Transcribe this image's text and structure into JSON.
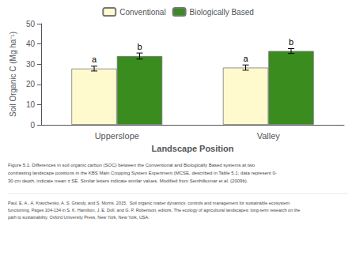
{
  "chart_data": {
    "type": "bar",
    "categories": [
      "Upperslope",
      "Valley"
    ],
    "series": [
      {
        "name": "Conventional",
        "color": "#FFFACD",
        "values": [
          27.8,
          28.3
        ],
        "errors": [
          1.2,
          1.3
        ],
        "annotations": [
          "a",
          "a"
        ]
      },
      {
        "name": "Biologically Based",
        "color": "#3a8c1e",
        "values": [
          34.0,
          36.5
        ],
        "errors": [
          1.5,
          1.2
        ],
        "annotations": [
          "b",
          "b"
        ]
      }
    ],
    "xlabel": "Landscape Position",
    "ylabel": "Soil Organic C (Mg ha⁻¹)",
    "ylim": [
      0,
      50
    ],
    "yticks": [
      0,
      10,
      20,
      30,
      40,
      50
    ],
    "grid": false,
    "legend": "upper center",
    "caption": "Figure 5.1. Differences in soil organic carbon (SOC) between the Conventional and Biologically Based systems at two\ncontrasting landscape positions in the KBS Main Cropping System Experiment (MCSE, described in Table 5.1; data represent 0-\n30 cm depth, indicate mean ± SE. Similar letters indicate similar values. Modified from Senthilkumar et al. (2009b).",
    "reference": "Paul, E. A., A. Kravchenko, A. S. Grandy, and S. Morris. 2015.  Soil organic matter dynamics: controls and management for sustainable ecosystem\nfunctioning. Pages 104-134 in S. K. Hamilton, J. E. Doll, and G. P. Robertson, editors. The ecology of agricultural landscapes: long-term research on the\npath to sustainability. Oxford University Press, New York, New York, USA."
  }
}
